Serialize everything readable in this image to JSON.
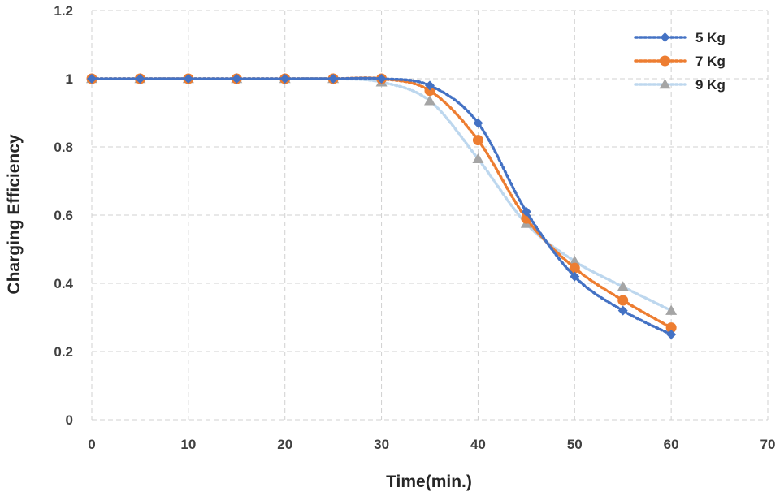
{
  "chart_data": {
    "type": "line",
    "title": "",
    "xlabel": "Time(min.)",
    "ylabel": "Charging Efficiency",
    "xlim": [
      0,
      70
    ],
    "ylim": [
      0,
      1.2
    ],
    "xticks": [
      0,
      10,
      20,
      30,
      40,
      50,
      60,
      70
    ],
    "yticks": [
      0,
      0.2,
      0.4,
      0.6,
      0.8,
      1,
      1.2
    ],
    "ytick_labels": [
      "0",
      "0.2",
      "0.4",
      "0.6",
      "0.8",
      "1",
      "1.2"
    ],
    "grid": true,
    "legend_position": "top-right",
    "x": [
      0,
      5,
      10,
      15,
      20,
      25,
      30,
      35,
      40,
      45,
      50,
      55,
      60
    ],
    "series": [
      {
        "name": "5 Kg",
        "marker": "diamond",
        "color": "#4472C4",
        "values": [
          1,
          1,
          1,
          1,
          1,
          1,
          1,
          0.98,
          0.87,
          0.61,
          0.42,
          0.32,
          0.25
        ]
      },
      {
        "name": "7 Kg",
        "marker": "circle",
        "color": "#ED7D31",
        "values": [
          1,
          1,
          1,
          1,
          1,
          1,
          1,
          0.965,
          0.82,
          0.59,
          0.445,
          0.35,
          0.27
        ]
      },
      {
        "name": "9 Kg",
        "marker": "triangle",
        "color": "#A5A5A5",
        "line_color": "#BDD7EE",
        "values": [
          1,
          1,
          1,
          1,
          1,
          1,
          0.99,
          0.935,
          0.765,
          0.575,
          0.465,
          0.39,
          0.32
        ]
      }
    ]
  }
}
